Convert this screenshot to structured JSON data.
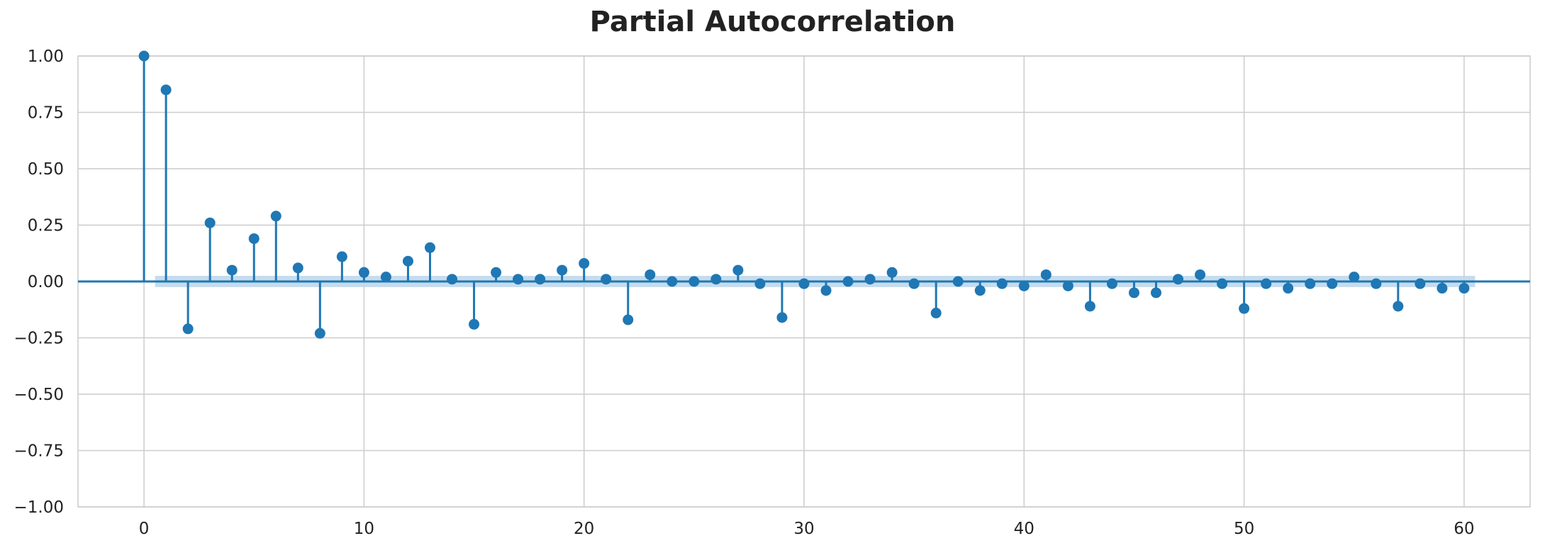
{
  "chart_data": {
    "type": "stem",
    "title": "Partial Autocorrelation",
    "xlabel": "",
    "ylabel": "",
    "xlim": [
      -3,
      63
    ],
    "ylim": [
      -1.0,
      1.0
    ],
    "grid": true,
    "x_ticks": [
      0,
      10,
      20,
      30,
      40,
      50,
      60
    ],
    "x_tick_labels": [
      "0",
      "10",
      "20",
      "30",
      "40",
      "50",
      "60"
    ],
    "y_ticks": [
      1.0,
      0.75,
      0.5,
      0.25,
      0.0,
      -0.25,
      -0.5,
      -0.75,
      -1.0
    ],
    "y_tick_labels": [
      "1.00",
      "0.75",
      "0.50",
      "0.25",
      "0.00",
      "−0.25",
      "−0.50",
      "−0.75",
      "−1.00"
    ],
    "confidence_band": {
      "x_range": [
        0.5,
        60.5
      ],
      "lower": -0.025,
      "upper": 0.025
    },
    "x": [
      0,
      1,
      2,
      3,
      4,
      5,
      6,
      7,
      8,
      9,
      10,
      11,
      12,
      13,
      14,
      15,
      16,
      17,
      18,
      19,
      20,
      21,
      22,
      23,
      24,
      25,
      26,
      27,
      28,
      29,
      30,
      31,
      32,
      33,
      34,
      35,
      36,
      37,
      38,
      39,
      40,
      41,
      42,
      43,
      44,
      45,
      46,
      47,
      48,
      49,
      50,
      51,
      52,
      53,
      54,
      55,
      56,
      57,
      58,
      59,
      60
    ],
    "values": [
      1.0,
      0.85,
      -0.21,
      0.26,
      0.05,
      0.19,
      0.29,
      0.06,
      -0.23,
      0.11,
      0.04,
      0.02,
      0.09,
      0.15,
      0.01,
      -0.19,
      0.04,
      0.01,
      0.01,
      0.05,
      0.08,
      0.01,
      -0.17,
      0.03,
      0.0,
      0.0,
      0.01,
      0.05,
      -0.01,
      -0.16,
      -0.01,
      -0.04,
      0.0,
      0.01,
      0.04,
      -0.01,
      -0.14,
      0.0,
      -0.04,
      -0.01,
      -0.02,
      0.03,
      -0.02,
      -0.11,
      -0.01,
      -0.05,
      -0.05,
      0.01,
      0.03,
      -0.01,
      -0.12,
      -0.01,
      -0.03,
      -0.01,
      -0.01,
      0.02,
      -0.01,
      -0.11,
      -0.01,
      -0.03,
      -0.03
    ],
    "colors": {
      "stem": "#1f77b4",
      "band": "#bcd6ea",
      "grid": "#cccccc",
      "axis_text": "#222222"
    }
  }
}
